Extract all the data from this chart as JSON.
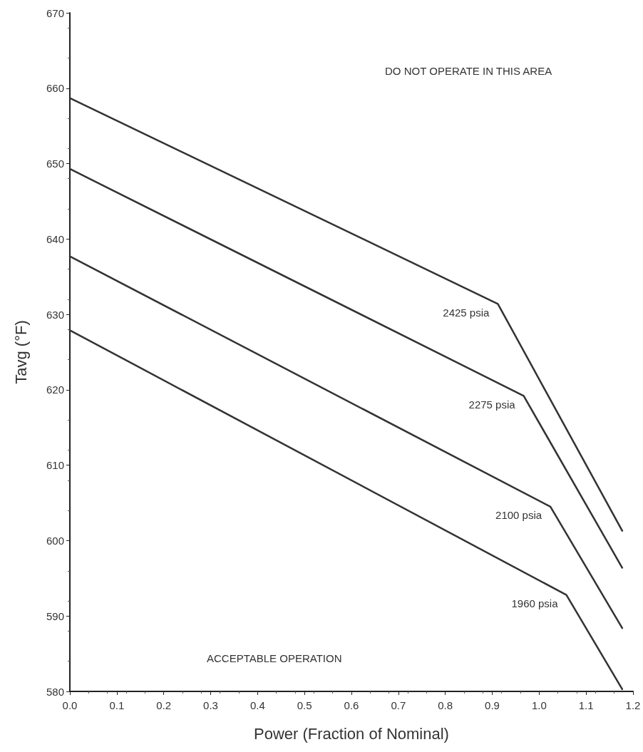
{
  "chart_data": {
    "type": "line",
    "xlabel": "Power (Fraction of Nominal)",
    "ylabel": "Tavg (°F)",
    "xlim": [
      0,
      1.2
    ],
    "xticks": [
      {
        "value": 0,
        "label": "0.0"
      },
      0.1,
      0.2,
      0.3,
      0.4,
      0.5,
      0.6,
      0.7,
      0.8,
      0.9,
      {
        "value": 1,
        "label": "1.0"
      },
      1.1,
      1.2
    ],
    "ylim": [
      580,
      670
    ],
    "yticks": [
      580,
      590,
      600,
      610,
      620,
      630,
      640,
      650,
      660,
      670
    ],
    "grid": false,
    "legend": false,
    "marker": "none",
    "line_style": "solid",
    "series": [
      {
        "name": "2425 psia",
        "color": "#333333",
        "x": [
          0,
          0.912,
          1.177
        ],
        "values": [
          658.7,
          631.4,
          601.3
        ]
      },
      {
        "name": "2275 psia",
        "color": "#333333",
        "x": [
          0,
          0.967,
          1.177
        ],
        "values": [
          649.3,
          619.2,
          596.4
        ]
      },
      {
        "name": "2100 psia",
        "color": "#333333",
        "x": [
          0,
          1.024,
          1.177
        ],
        "values": [
          637.7,
          604.5,
          588.4
        ]
      },
      {
        "name": "1960 psia",
        "color": "#333333",
        "x": [
          0,
          1.058,
          1.177
        ],
        "values": [
          627.9,
          592.8,
          580.3
        ]
      }
    ],
    "annotations": [
      "DO NOT OPERATE IN THIS AREA",
      "ACCEPTABLE OPERATION"
    ]
  }
}
